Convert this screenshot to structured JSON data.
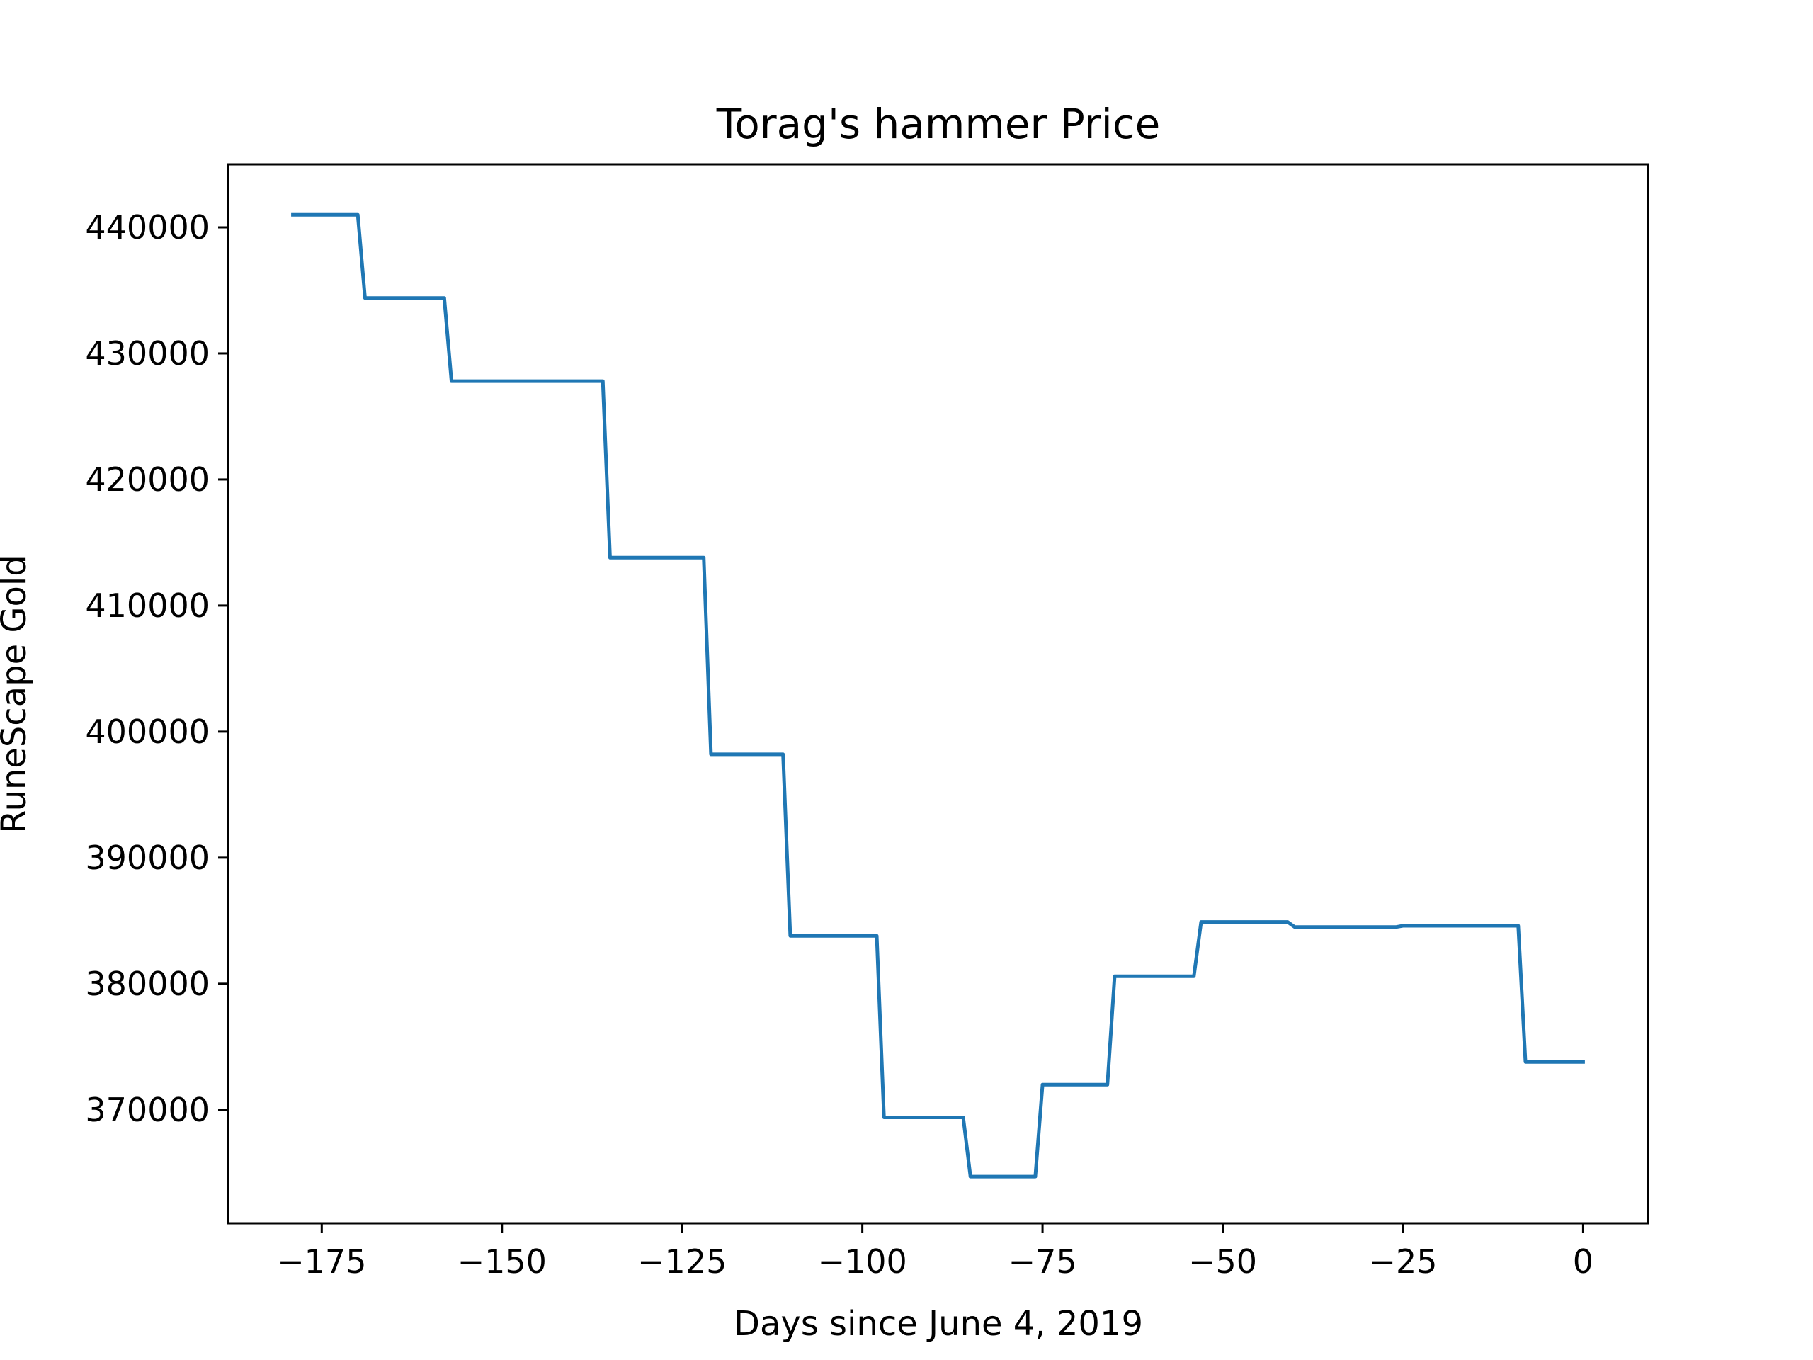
{
  "chart_data": {
    "type": "line",
    "title": "Torag's hammer Price",
    "xlabel": "Days since June 4, 2019",
    "ylabel": "RuneScape Gold",
    "xlim": [
      -188,
      9
    ],
    "ylim": [
      361000,
      445000
    ],
    "x_ticks": [
      -175,
      -150,
      -125,
      -100,
      -75,
      -50,
      -25,
      0
    ],
    "x_tick_labels": [
      "−175",
      "−150",
      "−125",
      "−100",
      "−75",
      "−50",
      "−25",
      "0"
    ],
    "y_ticks": [
      370000,
      380000,
      390000,
      400000,
      410000,
      420000,
      430000,
      440000
    ],
    "y_tick_labels": [
      "370000",
      "380000",
      "390000",
      "400000",
      "410000",
      "420000",
      "430000",
      "440000"
    ],
    "grid": false,
    "line_color": "#1f77b4",
    "series": [
      {
        "x": [
          -179,
          -170,
          -169,
          -158,
          -157,
          -136,
          -135,
          -122,
          -121,
          -111,
          -110,
          -98,
          -97,
          -86,
          -85,
          -76,
          -75,
          -66,
          -65,
          -54,
          -53,
          -41,
          -40,
          -26,
          -25,
          -9,
          -8,
          0
        ],
        "y": [
          441000,
          441000,
          434400,
          434400,
          427800,
          427800,
          413800,
          413800,
          398200,
          398200,
          383800,
          383800,
          369400,
          369400,
          364700,
          364700,
          372000,
          372000,
          380600,
          380600,
          384900,
          384900,
          384500,
          384500,
          384600,
          384600,
          373800,
          373800
        ]
      }
    ]
  }
}
